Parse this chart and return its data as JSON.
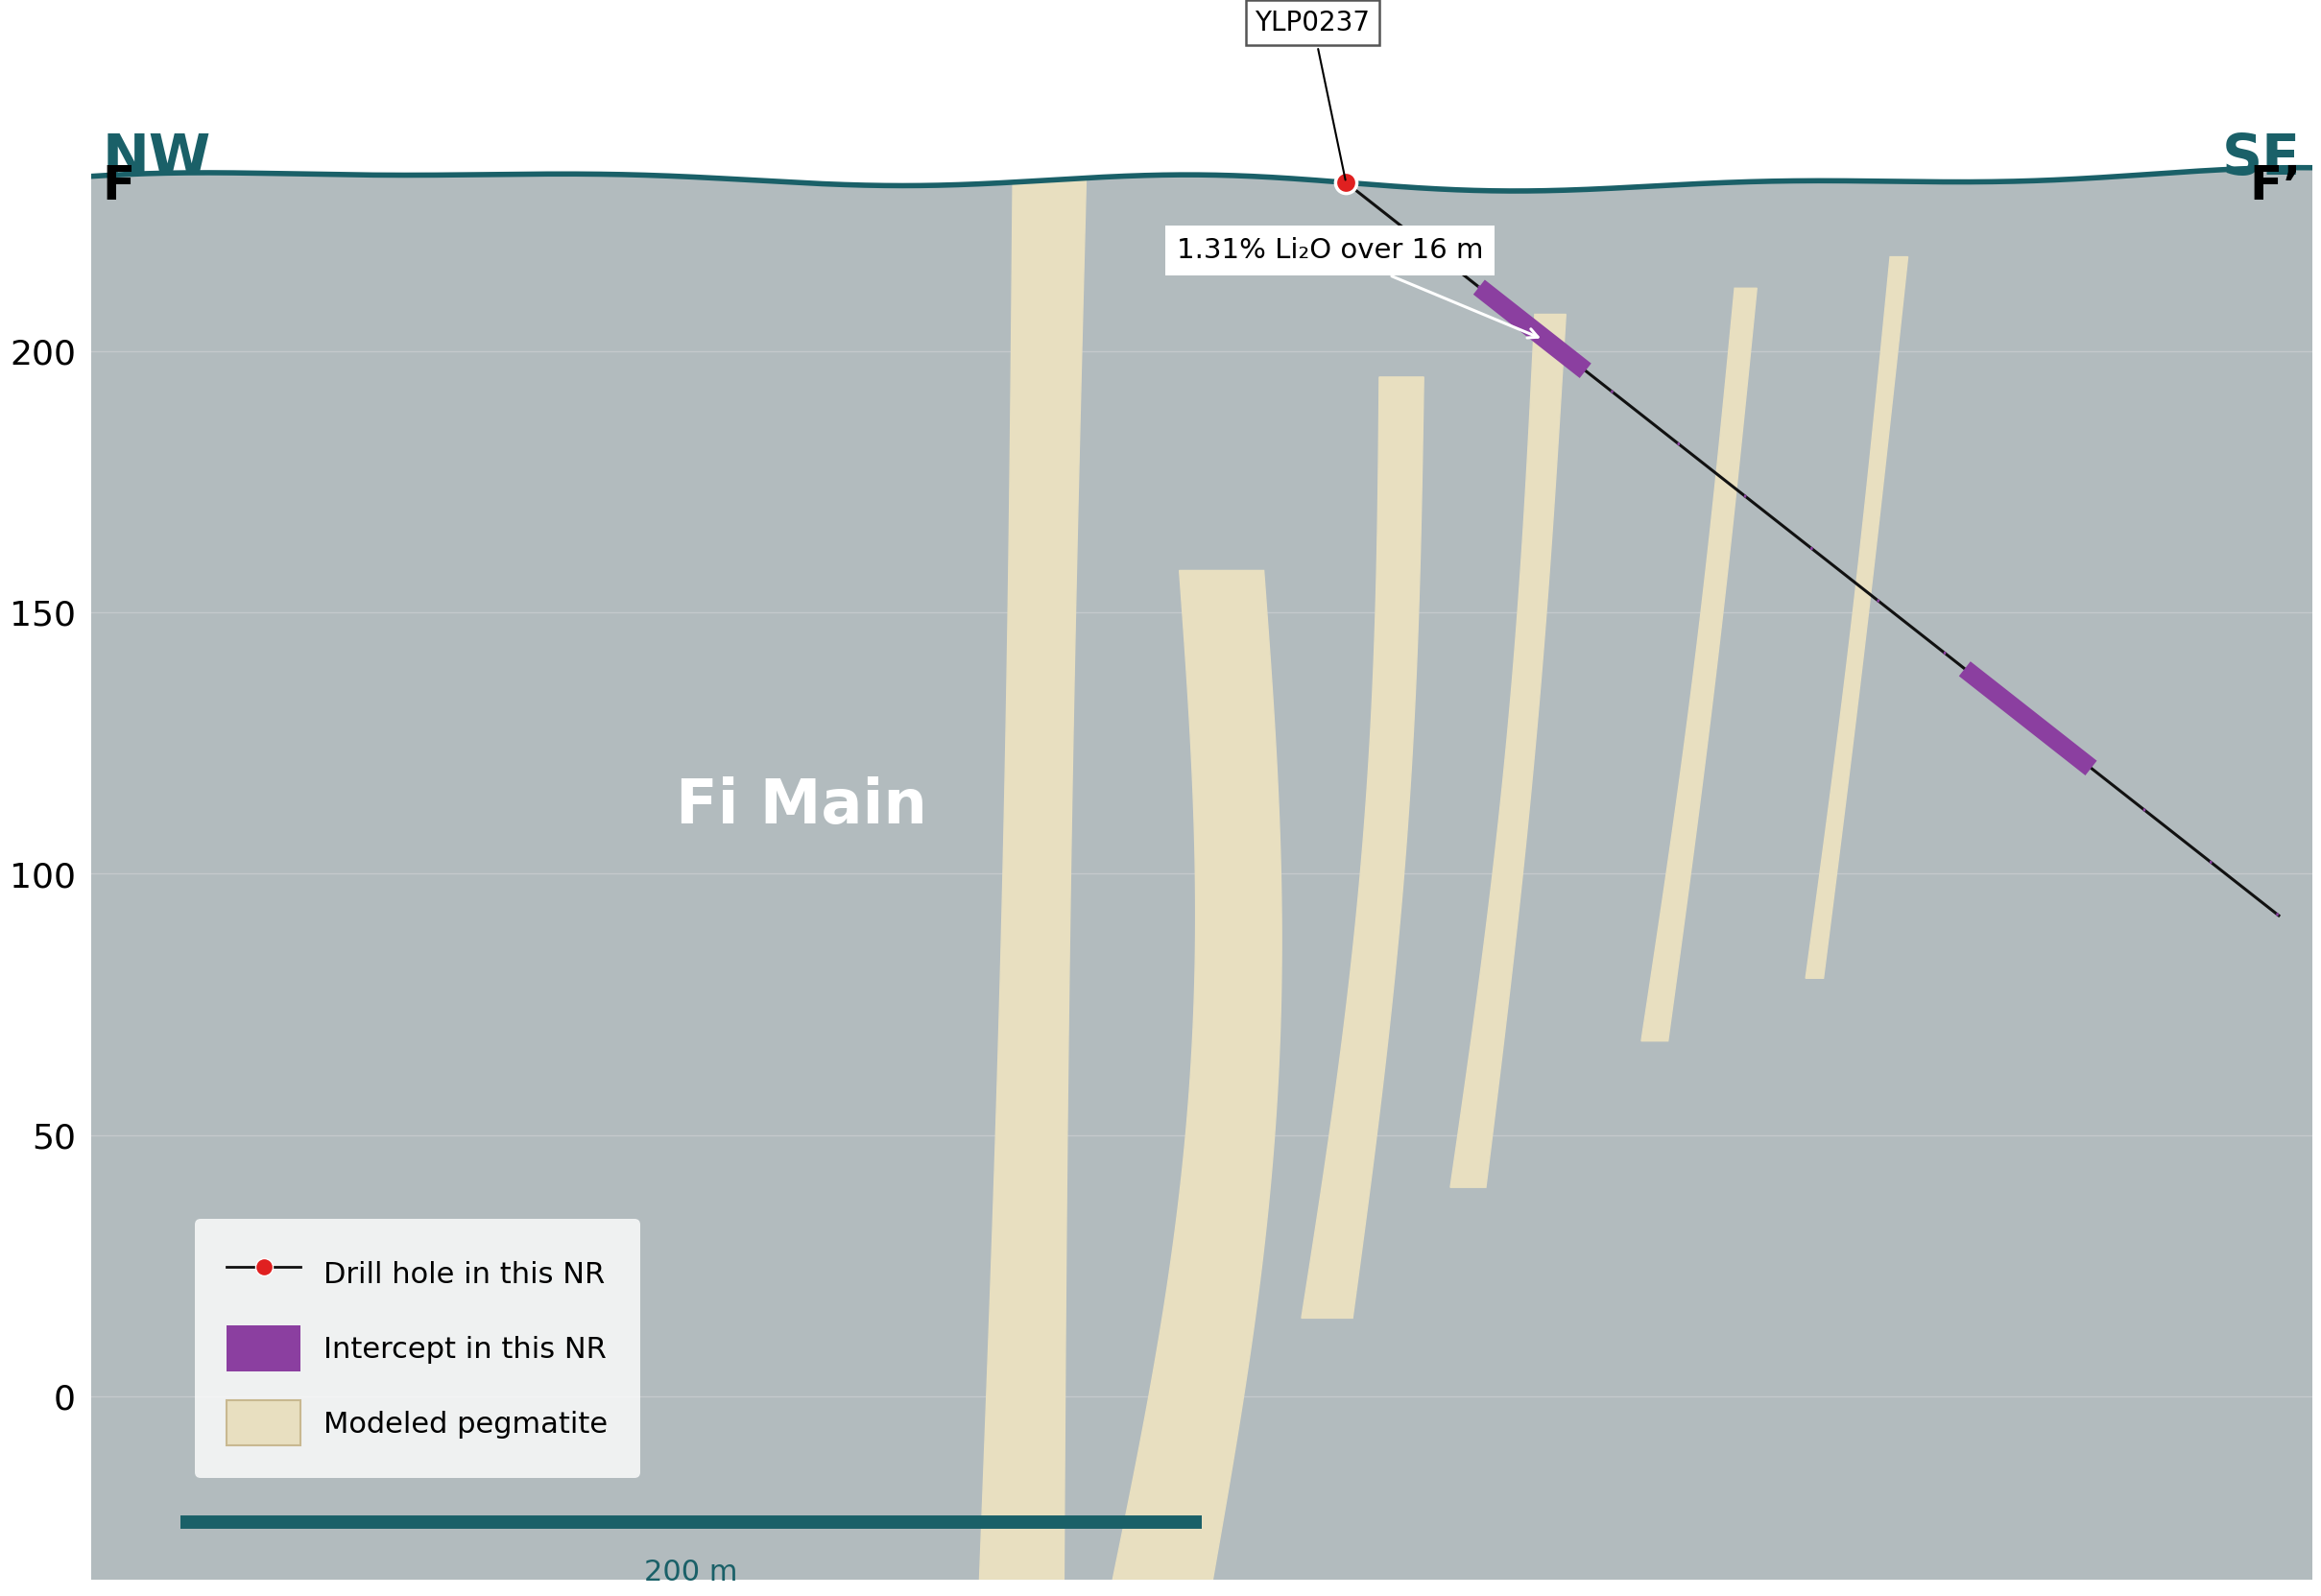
{
  "bg_color": "#b2bbbe",
  "surface_color": "#1a6068",
  "pegmatite_color": "#e8dfc0",
  "pegmatite_outline": "#c8b890",
  "drill_line_color": "#111111",
  "collar_color": "#e02020",
  "intercept_color": "#8b3fa0",
  "tick_color": "#8b3fa0",
  "hole_label": "YLP0237",
  "annotation_text": "1.31% Li₂O over 16 m",
  "nw_label": "NW",
  "se_label": "SE",
  "f_label": "F",
  "fprime_label": "F’",
  "fi_main_label": "Fi Main",
  "legend_labels": [
    "Drill hole in this NR",
    "Intercept in this NR",
    "Modeled pegmatite"
  ],
  "scale_bar_label": "200 m",
  "teal_color": "#1a6068",
  "xlim": [
    0,
    1
  ],
  "ylim": [
    -35,
    242
  ],
  "yticks": [
    0,
    50,
    100,
    150,
    200
  ],
  "grid_color": "#c4c9cc",
  "axis_fontsize": 26,
  "nwse_fontsize": 42,
  "ff_fontsize": 36,
  "fi_fontsize": 46,
  "legend_fontsize": 22,
  "scalebar_fontsize": 22,
  "annotation_fontsize": 21,
  "hole_label_fontsize": 20
}
